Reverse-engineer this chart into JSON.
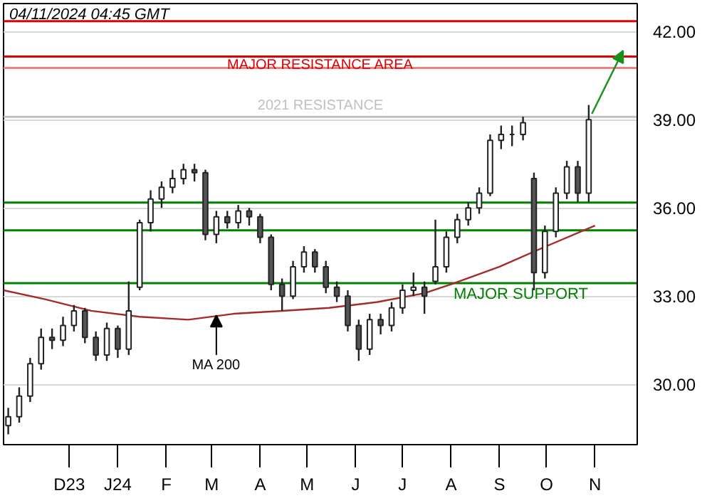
{
  "chart_data": {
    "type": "candlestick",
    "x": [
      "2023-10-23",
      "2023-10-30",
      "2023-11-06",
      "2023-11-13",
      "2023-11-20",
      "2023-11-27",
      "2023-12-04",
      "2023-12-11",
      "2023-12-18",
      "2023-12-25",
      "2024-01-01",
      "2024-01-08",
      "2024-01-15",
      "2024-01-22",
      "2024-01-29",
      "2024-02-05",
      "2024-02-12",
      "2024-02-19",
      "2024-02-26",
      "2024-03-04",
      "2024-03-11",
      "2024-03-18",
      "2024-03-25",
      "2024-04-01",
      "2024-04-08",
      "2024-04-15",
      "2024-04-22",
      "2024-04-29",
      "2024-05-06",
      "2024-05-13",
      "2024-05-20",
      "2024-05-27",
      "2024-06-03",
      "2024-06-10",
      "2024-06-17",
      "2024-06-24",
      "2024-07-01",
      "2024-07-08",
      "2024-07-15",
      "2024-07-22",
      "2024-07-29",
      "2024-08-05",
      "2024-08-12",
      "2024-08-19",
      "2024-08-26",
      "2024-09-02",
      "2024-09-09",
      "2024-09-16",
      "2024-09-23",
      "2024-09-30",
      "2024-10-07",
      "2024-10-14",
      "2024-10-21",
      "2024-10-28"
    ],
    "ohlc": [
      [
        28.6,
        29.2,
        28.3,
        28.9
      ],
      [
        28.9,
        29.9,
        28.7,
        29.6
      ],
      [
        29.6,
        30.9,
        29.4,
        30.7
      ],
      [
        30.7,
        31.9,
        30.5,
        31.6
      ],
      [
        31.6,
        31.9,
        31.2,
        31.5
      ],
      [
        31.5,
        32.3,
        31.3,
        32.0
      ],
      [
        32.0,
        32.7,
        31.8,
        32.5
      ],
      [
        32.5,
        32.6,
        31.4,
        31.6
      ],
      [
        31.6,
        31.8,
        30.8,
        31.0
      ],
      [
        31.0,
        32.1,
        30.8,
        31.9
      ],
      [
        31.9,
        32.0,
        30.9,
        31.2
      ],
      [
        31.2,
        33.5,
        31.0,
        32.5
      ],
      [
        33.3,
        35.6,
        33.2,
        35.5
      ],
      [
        35.5,
        36.6,
        35.2,
        36.3
      ],
      [
        36.3,
        36.9,
        36.0,
        36.7
      ],
      [
        36.7,
        37.3,
        36.5,
        37.0
      ],
      [
        37.0,
        37.5,
        36.8,
        37.3
      ],
      [
        37.3,
        37.5,
        36.9,
        37.2
      ],
      [
        37.2,
        37.3,
        34.9,
        35.1
      ],
      [
        35.1,
        35.9,
        34.8,
        35.7
      ],
      [
        35.7,
        35.9,
        35.3,
        35.5
      ],
      [
        35.5,
        36.1,
        35.3,
        35.9
      ],
      [
        35.9,
        36.0,
        35.4,
        35.7
      ],
      [
        35.7,
        35.8,
        34.8,
        35.0
      ],
      [
        35.0,
        35.1,
        33.2,
        33.4
      ],
      [
        33.4,
        33.6,
        32.5,
        33.0
      ],
      [
        33.0,
        34.2,
        32.9,
        34.0
      ],
      [
        34.0,
        34.7,
        33.8,
        34.5
      ],
      [
        34.5,
        34.6,
        33.8,
        34.0
      ],
      [
        34.0,
        34.2,
        33.1,
        33.3
      ],
      [
        33.3,
        33.5,
        32.8,
        33.0
      ],
      [
        33.0,
        33.2,
        31.8,
        32.0
      ],
      [
        32.0,
        32.2,
        30.8,
        31.2
      ],
      [
        31.2,
        32.4,
        31.0,
        32.2
      ],
      [
        32.2,
        32.4,
        31.7,
        32.0
      ],
      [
        32.0,
        32.8,
        31.8,
        32.6
      ],
      [
        32.6,
        33.4,
        32.4,
        33.2
      ],
      [
        33.2,
        33.8,
        33.0,
        33.3
      ],
      [
        33.3,
        33.5,
        32.4,
        33.0
      ],
      [
        33.5,
        35.6,
        33.4,
        34.0
      ],
      [
        34.0,
        35.2,
        33.8,
        35.0
      ],
      [
        35.0,
        35.8,
        34.8,
        35.6
      ],
      [
        35.6,
        36.2,
        35.4,
        36.0
      ],
      [
        36.0,
        36.7,
        35.8,
        36.5
      ],
      [
        36.5,
        38.5,
        36.4,
        38.3
      ],
      [
        38.3,
        38.8,
        38.0,
        38.5
      ],
      [
        38.5,
        38.8,
        38.1,
        38.5
      ],
      [
        38.5,
        39.1,
        38.3,
        38.9
      ],
      [
        37.0,
        37.2,
        33.2,
        33.8
      ],
      [
        33.8,
        35.4,
        33.6,
        35.2
      ],
      [
        35.2,
        36.7,
        35.0,
        36.5
      ],
      [
        36.5,
        37.6,
        36.3,
        37.4
      ],
      [
        37.4,
        37.6,
        36.2,
        36.5
      ],
      [
        36.5,
        39.5,
        36.2,
        39.0
      ]
    ],
    "series": [
      {
        "type": "line",
        "color": "#a52a2a",
        "x": [
          "2023-10-20",
          "2023-11-15",
          "2023-12-15",
          "2024-01-15",
          "2024-02-15",
          "2024-03-15",
          "2024-04-15",
          "2024-05-15",
          "2024-06-15",
          "2024-07-15",
          "2024-08-01",
          "2024-09-01",
          "2024-10-01",
          "2024-11-01"
        ],
        "values": [
          33.2,
          32.9,
          32.5,
          32.3,
          32.2,
          32.4,
          32.5,
          32.6,
          32.8,
          33.1,
          33.4,
          34.0,
          34.7,
          35.4
        ]
      }
    ],
    "xlim": [
      "2023-10-20",
      "2024-11-28"
    ],
    "xticks": [
      {
        "value": "2023-12-01",
        "label": "D23"
      },
      {
        "value": "2024-01-01",
        "label": "J24"
      },
      {
        "value": "2024-02-01",
        "label": "F"
      },
      {
        "value": "2024-03-01",
        "label": "M"
      },
      {
        "value": "2024-04-01",
        "label": "A"
      },
      {
        "value": "2024-05-01",
        "label": "M"
      },
      {
        "value": "2024-06-01",
        "label": "J"
      },
      {
        "value": "2024-07-01",
        "label": "J"
      },
      {
        "value": "2024-08-01",
        "label": "A"
      },
      {
        "value": "2024-09-01",
        "label": "S"
      },
      {
        "value": "2024-10-01",
        "label": "O"
      },
      {
        "value": "2024-11-01",
        "label": "N"
      }
    ],
    "ylim": [
      27.95,
      42.95
    ],
    "yticks": [
      {
        "value": 30,
        "label": "30.00"
      },
      {
        "value": 33,
        "label": "33.00"
      },
      {
        "value": 36,
        "label": "36.00"
      },
      {
        "value": 39,
        "label": "39.00"
      },
      {
        "value": 42,
        "label": "42.00"
      }
    ],
    "grid": "y",
    "ref_lines": [
      {
        "axis": "y",
        "value": 42.35,
        "color": "#e00000"
      },
      {
        "axis": "y",
        "value": 41.15,
        "label": "MAJOR RESISTANCE AREA",
        "color": "#e00000"
      },
      {
        "axis": "y",
        "value": 40.76,
        "color": "#f08080"
      },
      {
        "axis": "y",
        "value": 39.1,
        "label": "2021 RESISTANCE",
        "color": "#c0c0c0"
      },
      {
        "axis": "y",
        "value": 36.18,
        "color": "#008000"
      },
      {
        "axis": "y",
        "value": 35.24,
        "color": "#008000"
      },
      {
        "axis": "y",
        "value": 33.44,
        "label": "MAJOR SUPPORT",
        "color": "#008000"
      }
    ],
    "annotations": [
      "04/11/2024 04:45 GMT",
      {
        "text": "MA 200",
        "x": "2024-03-04",
        "y": 32.4
      }
    ]
  }
}
